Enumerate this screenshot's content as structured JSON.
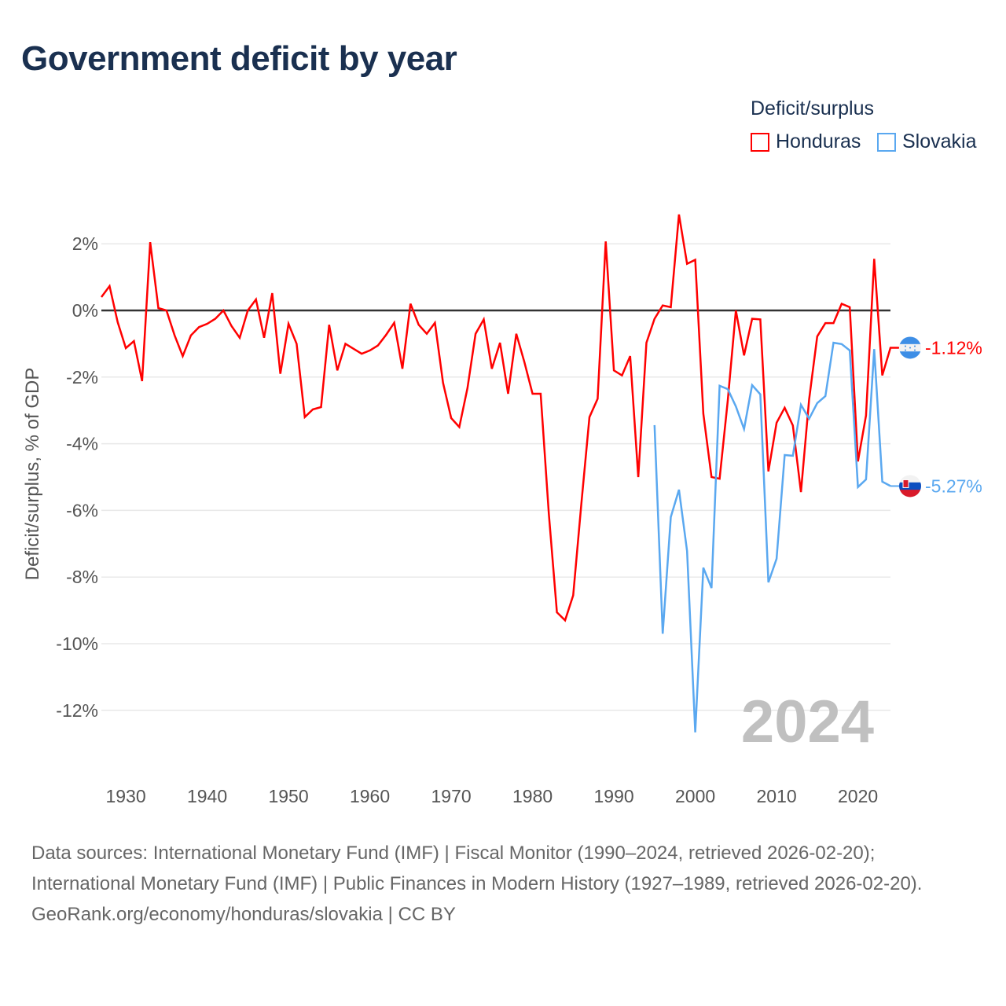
{
  "title": "Government deficit by year",
  "legend": {
    "title": "Deficit/surplus",
    "items": [
      {
        "label": "Honduras",
        "color": "#ff0000"
      },
      {
        "label": "Slovakia",
        "color": "#5aa8f0"
      }
    ]
  },
  "footer": {
    "sources": "Data sources: International Monetary Fund (IMF) | Fiscal Monitor (1990–2024, retrieved 2026-02-20); International Monetary Fund (IMF) | Public Finances in Modern History (1927–1989, retrieved 2026-02-20).",
    "credit": "GeoRank.org/economy/honduras/slovakia | CC BY"
  },
  "chart_data": {
    "type": "line",
    "title": "Government deficit by year",
    "xlabel": "",
    "ylabel": "Deficit/surplus, % of GDP",
    "xlim": [
      1927,
      2024
    ],
    "ylim": [
      -13.5,
      3.5
    ],
    "xticks": [
      1930,
      1940,
      1950,
      1960,
      1970,
      1980,
      1990,
      2000,
      2010,
      2020
    ],
    "yticks": [
      2,
      0,
      -2,
      -4,
      -6,
      -8,
      -10,
      -12
    ],
    "ytick_labels": [
      "2%",
      "0%",
      "-2%",
      "-4%",
      "-6%",
      "-8%",
      "-10%",
      "-12%"
    ],
    "grid": true,
    "legend_position": "top-right",
    "watermark_year": "2024",
    "series": [
      {
        "name": "Honduras",
        "color": "#ff0000",
        "start": 1927,
        "end_label": "-1.12%",
        "icon": "honduras-flag-icon",
        "values": [
          0.4,
          0.73,
          -0.35,
          -1.13,
          -0.92,
          -2.12,
          2.05,
          0.07,
          0.0,
          -0.75,
          -1.37,
          -0.75,
          -0.5,
          -0.4,
          -0.25,
          0,
          -0.47,
          -0.82,
          0,
          0.33,
          -0.82,
          0.52,
          -1.9,
          -0.4,
          -1.0,
          -3.2,
          -2.97,
          -2.9,
          -0.43,
          -1.8,
          -1.0,
          -1.15,
          -1.3,
          -1.2,
          -1.05,
          -0.73,
          -0.37,
          -1.75,
          0.2,
          -0.43,
          -0.7,
          -0.37,
          -2.17,
          -3.23,
          -3.5,
          -2.33,
          -0.7,
          -0.27,
          -1.75,
          -0.97,
          -2.5,
          -0.7,
          -1.55,
          -2.5,
          -2.5,
          -6.1,
          -9.06,
          -9.3,
          -8.55,
          -5.8,
          -3.2,
          -2.65,
          2.07,
          -1.8,
          -1.95,
          -1.37,
          -5.0,
          -0.97,
          -0.25,
          0.15,
          0.1,
          2.88,
          1.4,
          1.52,
          -3.1,
          -5.0,
          -5.05,
          -2.7,
          0.0,
          -1.35,
          -0.25,
          -0.27,
          -4.83,
          -3.37,
          -2.92,
          -3.45,
          -5.45,
          -2.67,
          -0.78,
          -0.38,
          -0.38,
          0.2,
          0.1,
          -4.53,
          -3.15,
          1.55,
          -1.95,
          -1.12,
          -1.12
        ]
      },
      {
        "name": "Slovakia",
        "color": "#5aa8f0",
        "start": 1995,
        "end_label": "-5.27%",
        "icon": "slovakia-flag-icon",
        "values": [
          -3.44,
          -9.7,
          -6.2,
          -5.38,
          -7.22,
          -12.66,
          -7.72,
          -8.33,
          -2.26,
          -2.36,
          -2.88,
          -3.56,
          -2.24,
          -2.52,
          -8.16,
          -7.45,
          -4.34,
          -4.36,
          -2.83,
          -3.25,
          -2.78,
          -2.57,
          -0.97,
          -1.01,
          -1.2,
          -5.3,
          -5.07,
          -1.16,
          -5.14,
          -5.27
        ]
      }
    ]
  }
}
